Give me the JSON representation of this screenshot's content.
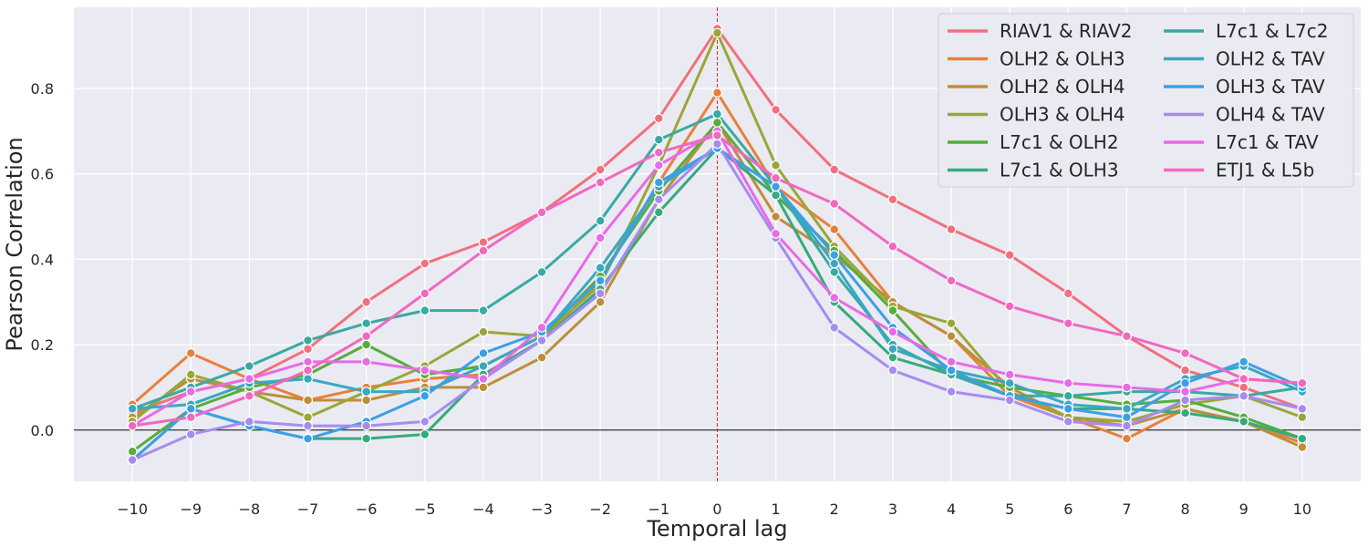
{
  "chart_data": {
    "type": "line",
    "xlabel": "Temporal lag",
    "ylabel": "Pearson Correlation",
    "x": [
      -10,
      -9,
      -8,
      -7,
      -6,
      -5,
      -4,
      -3,
      -2,
      -1,
      0,
      1,
      2,
      3,
      4,
      5,
      6,
      7,
      8,
      9,
      10
    ],
    "x_tick_labels": [
      "−10",
      "−9",
      "−8",
      "−7",
      "−6",
      "−5",
      "−4",
      "−3",
      "−2",
      "−1",
      "0",
      "1",
      "2",
      "3",
      "4",
      "5",
      "6",
      "7",
      "8",
      "9",
      "10"
    ],
    "xlim": [
      -11,
      11
    ],
    "ylim": [
      -0.12,
      0.99
    ],
    "y_ticks": [
      0.0,
      0.2,
      0.4,
      0.6,
      0.8
    ],
    "y_tick_labels": [
      "0.0",
      "0.2",
      "0.4",
      "0.6",
      "0.8"
    ],
    "grid": true,
    "reference_lines": {
      "horizontal_zero": true,
      "vertical_at_zero_dashed": true
    },
    "legend_position": "top-right",
    "legend_columns": 2,
    "colors": {
      "background": "#eaeaf2",
      "grid": "#ffffff",
      "zero_line": "#000000",
      "vertical_line": "#d62728"
    },
    "series": [
      {
        "name": "RIAV1 & RIAV2",
        "color": "#f1707e",
        "values": [
          0.04,
          0.09,
          0.12,
          0.19,
          0.3,
          0.39,
          0.44,
          0.51,
          0.61,
          0.73,
          0.94,
          0.75,
          0.61,
          0.54,
          0.47,
          0.41,
          0.32,
          0.22,
          0.14,
          0.1,
          0.05
        ]
      },
      {
        "name": "OLH2 & OLH3",
        "color": "#e8803a",
        "values": [
          0.06,
          0.18,
          0.12,
          0.07,
          0.1,
          0.12,
          0.13,
          0.21,
          0.35,
          0.58,
          0.79,
          0.57,
          0.47,
          0.3,
          0.22,
          0.08,
          0.03,
          -0.02,
          0.05,
          0.02,
          -0.03
        ]
      },
      {
        "name": "OLH2 & OLH4",
        "color": "#bd8f39",
        "values": [
          0.03,
          0.12,
          0.09,
          0.07,
          0.07,
          0.1,
          0.1,
          0.17,
          0.3,
          0.54,
          0.72,
          0.5,
          0.41,
          0.3,
          0.22,
          0.1,
          0.03,
          0.01,
          0.05,
          0.02,
          -0.04
        ]
      },
      {
        "name": "OLH3 & OLH4",
        "color": "#9aa637",
        "values": [
          0.02,
          0.13,
          0.09,
          0.03,
          0.09,
          0.15,
          0.23,
          0.22,
          0.34,
          0.62,
          0.93,
          0.62,
          0.43,
          0.29,
          0.25,
          0.09,
          0.03,
          0.02,
          0.06,
          0.08,
          0.03
        ]
      },
      {
        "name": "L7c1 & OLH2",
        "color": "#56ad3a",
        "values": [
          -0.05,
          0.05,
          0.1,
          0.13,
          0.2,
          0.13,
          0.15,
          0.22,
          0.36,
          0.56,
          0.72,
          0.55,
          0.42,
          0.28,
          0.13,
          0.1,
          0.08,
          0.06,
          0.07,
          0.03,
          -0.02
        ]
      },
      {
        "name": "L7c1 & OLH3",
        "color": "#36ab7c",
        "values": [
          -0.07,
          0.05,
          0.01,
          -0.02,
          -0.02,
          -0.01,
          0.13,
          0.21,
          0.33,
          0.51,
          0.66,
          0.55,
          0.3,
          0.17,
          0.13,
          0.08,
          0.05,
          0.05,
          0.04,
          0.02,
          -0.02
        ]
      },
      {
        "name": "L7c1 & L7c2",
        "color": "#38aaa1",
        "values": [
          0.05,
          0.1,
          0.15,
          0.21,
          0.25,
          0.28,
          0.28,
          0.37,
          0.49,
          0.68,
          0.74,
          0.57,
          0.37,
          0.2,
          0.13,
          0.08,
          0.08,
          0.09,
          0.09,
          0.08,
          0.1
        ]
      },
      {
        "name": "OLH2 & TAV",
        "color": "#39a8c0",
        "values": [
          0.05,
          0.06,
          0.11,
          0.12,
          0.09,
          0.09,
          0.15,
          0.22,
          0.38,
          0.57,
          0.66,
          0.57,
          0.39,
          0.19,
          0.14,
          0.11,
          0.06,
          0.05,
          0.12,
          0.15,
          0.09
        ]
      },
      {
        "name": "OLH3 & TAV",
        "color": "#3ba0e6",
        "values": [
          -0.07,
          0.05,
          0.01,
          -0.02,
          0.02,
          0.08,
          0.18,
          0.23,
          0.35,
          0.58,
          0.66,
          0.57,
          0.41,
          0.24,
          0.14,
          0.08,
          0.05,
          0.03,
          0.11,
          0.16,
          0.1
        ]
      },
      {
        "name": "OLH4 & TAV",
        "color": "#a68cf0",
        "values": [
          -0.07,
          -0.01,
          0.02,
          0.01,
          0.01,
          0.02,
          0.12,
          0.21,
          0.32,
          0.54,
          0.67,
          0.45,
          0.24,
          0.14,
          0.09,
          0.07,
          0.02,
          0.01,
          0.07,
          0.08,
          0.05
        ]
      },
      {
        "name": "L7c1 & TAV",
        "color": "#e76be6",
        "values": [
          0.01,
          0.09,
          0.12,
          0.16,
          0.16,
          0.14,
          0.12,
          0.24,
          0.45,
          0.62,
          0.7,
          0.46,
          0.31,
          0.23,
          0.16,
          0.13,
          0.11,
          0.1,
          0.09,
          0.12,
          0.11
        ]
      },
      {
        "name": "ETJ1 & L5b",
        "color": "#f168c0",
        "values": [
          0.01,
          0.03,
          0.08,
          0.14,
          0.22,
          0.32,
          0.42,
          0.51,
          0.58,
          0.65,
          0.69,
          0.59,
          0.53,
          0.43,
          0.35,
          0.29,
          0.25,
          0.22,
          0.18,
          0.12,
          0.11
        ]
      }
    ]
  }
}
